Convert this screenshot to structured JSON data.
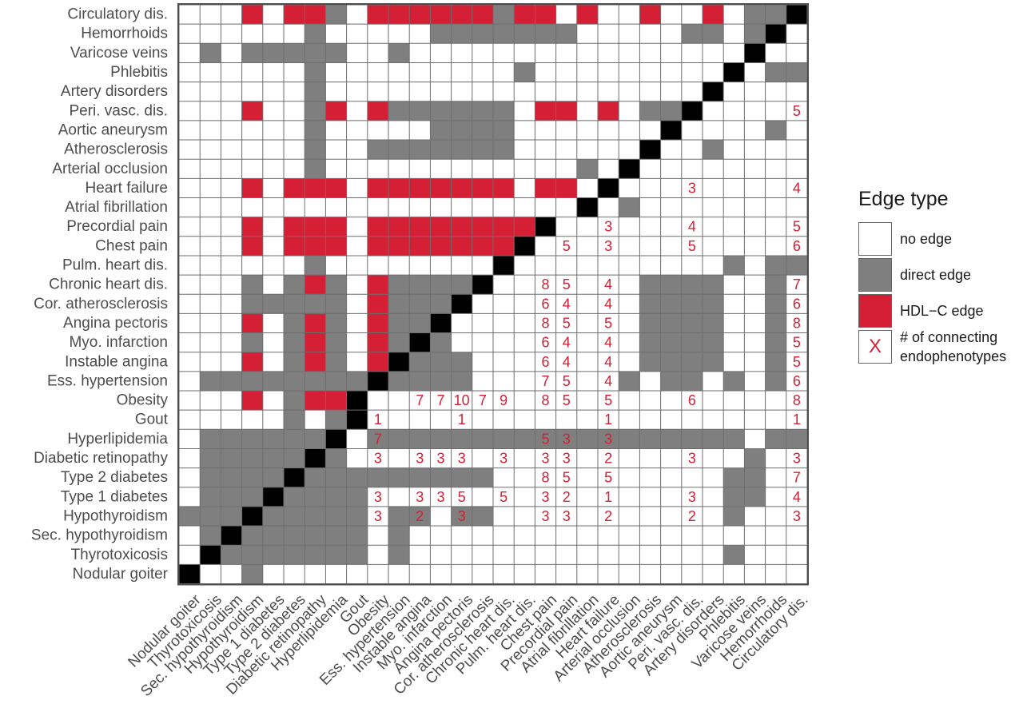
{
  "chart_data": {
    "type": "heatmap",
    "title": "",
    "xlabel": "",
    "ylabel": "",
    "grid": true,
    "legend_position": "right",
    "colors": {
      "none": "#ffffff",
      "direct": "#7f7f7f",
      "hdl": "#d41f34",
      "diag": "#000000",
      "count": "#d41f34",
      "border": "#6e6e6e"
    },
    "x_categories": [
      "Nodular goiter",
      "Thyrotoxicosis",
      "Sec. hypothyroidism",
      "Hypothyroidism",
      "Type 1 diabetes",
      "Type 2 diabetes",
      "Diabetic retinopathy",
      "Hyperlipidemia",
      "Gout",
      "Obesity",
      "Ess. hypertension",
      "Instable angina",
      "Myo. infarction",
      "Angina pectoris",
      "Cor. atherosclerosis",
      "Chronic heart dis.",
      "Pulm. heart dis.",
      "Chest pain",
      "Precordial pain",
      "Atrial fibrillation",
      "Heart failure",
      "Arterial occlusion",
      "Atherosclerosis",
      "Aortic aneurysm",
      "Peri. vasc. dis.",
      "Artery disorders",
      "Phlebitis",
      "Varicose veins",
      "Hemorrhoids",
      "Circulatory dis."
    ],
    "y_categories": [
      "Circulatory dis.",
      "Hemorrhoids",
      "Varicose veins",
      "Phlebitis",
      "Artery disorders",
      "Peri. vasc. dis.",
      "Aortic aneurysm",
      "Atherosclerosis",
      "Arterial occlusion",
      "Heart failure",
      "Atrial fibrillation",
      "Precordial pain",
      "Chest pain",
      "Pulm. heart dis.",
      "Chronic heart dis.",
      "Cor. atherosclerosis",
      "Angina pectoris",
      "Myo. infarction",
      "Instable angina",
      "Ess. hypertension",
      "Obesity",
      "Gout",
      "Hyperlipidemia",
      "Diabetic retinopathy",
      "Type 2 diabetes",
      "Type 1 diabetes",
      "Hypothyroidism",
      "Sec. hypothyroidism",
      "Thyrotoxicosis",
      "Nodular goiter"
    ],
    "cell_codes": "0 none, 1 direct edge, 2 HDL-C edge, 3 diagonal (self); rows follow y_categories, columns follow x_categories",
    "cells": [
      "000202210222222122020020020113",
      "000000100000111111100000110130",
      "010111110010000000000000000300",
      "000000100000000010000000003011",
      "000000100000000000000000030000",
      "000200120211111102202011300000",
      "000000100000111100000003000010",
      "000000100111111100000030010000",
      "000000100000000000010300000000",
      "000202220222222202203000000000",
      "000000000000000000030100000000",
      "000202220222222223000000000000",
      "000202220222222230000000000000",
      "000000100000000300000000001011",
      "000101210211113000000011110010",
      "000111110211130000000011110010",
      "000201210211300000000011110010",
      "000101210213100000000011110010",
      "000201210231110000000011110010",
      "011111111311110000000101101010",
      "000201223000000000000000000000",
      "000001013000000000000000000000",
      "011111130111111111111111111011",
      "011111310000000000000000000100",
      "011113111111111000000000001100",
      "011131111000000000000000001100",
      "111311111011011000000000001000",
      "013111111010000000000000000000",
      "031111111010000000000000001000",
      "300100000000000000000000000000"
    ],
    "counts": [
      {
        "row": "Peri. vasc. dis.",
        "col": "Circulatory dis.",
        "value": "5"
      },
      {
        "row": "Heart failure",
        "col": "Peri. vasc. dis.",
        "value": "3"
      },
      {
        "row": "Heart failure",
        "col": "Circulatory dis.",
        "value": "4"
      },
      {
        "row": "Precordial pain",
        "col": "Heart failure",
        "value": "3"
      },
      {
        "row": "Precordial pain",
        "col": "Peri. vasc. dis.",
        "value": "4"
      },
      {
        "row": "Precordial pain",
        "col": "Circulatory dis.",
        "value": "5"
      },
      {
        "row": "Chest pain",
        "col": "Precordial pain",
        "value": "5"
      },
      {
        "row": "Chest pain",
        "col": "Heart failure",
        "value": "3"
      },
      {
        "row": "Chest pain",
        "col": "Peri. vasc. dis.",
        "value": "5"
      },
      {
        "row": "Chest pain",
        "col": "Circulatory dis.",
        "value": "6"
      },
      {
        "row": "Chronic heart dis.",
        "col": "Chest pain",
        "value": "8"
      },
      {
        "row": "Chronic heart dis.",
        "col": "Precordial pain",
        "value": "5"
      },
      {
        "row": "Chronic heart dis.",
        "col": "Heart failure",
        "value": "4"
      },
      {
        "row": "Chronic heart dis.",
        "col": "Circulatory dis.",
        "value": "7"
      },
      {
        "row": "Cor. atherosclerosis",
        "col": "Chest pain",
        "value": "6"
      },
      {
        "row": "Cor. atherosclerosis",
        "col": "Precordial pain",
        "value": "4"
      },
      {
        "row": "Cor. atherosclerosis",
        "col": "Heart failure",
        "value": "4"
      },
      {
        "row": "Cor. atherosclerosis",
        "col": "Circulatory dis.",
        "value": "6"
      },
      {
        "row": "Angina pectoris",
        "col": "Chest pain",
        "value": "8"
      },
      {
        "row": "Angina pectoris",
        "col": "Precordial pain",
        "value": "5"
      },
      {
        "row": "Angina pectoris",
        "col": "Heart failure",
        "value": "5"
      },
      {
        "row": "Angina pectoris",
        "col": "Circulatory dis.",
        "value": "8"
      },
      {
        "row": "Myo. infarction",
        "col": "Chest pain",
        "value": "6"
      },
      {
        "row": "Myo. infarction",
        "col": "Precordial pain",
        "value": "4"
      },
      {
        "row": "Myo. infarction",
        "col": "Heart failure",
        "value": "4"
      },
      {
        "row": "Myo. infarction",
        "col": "Circulatory dis.",
        "value": "5"
      },
      {
        "row": "Instable angina",
        "col": "Chest pain",
        "value": "6"
      },
      {
        "row": "Instable angina",
        "col": "Precordial pain",
        "value": "4"
      },
      {
        "row": "Instable angina",
        "col": "Heart failure",
        "value": "4"
      },
      {
        "row": "Instable angina",
        "col": "Circulatory dis.",
        "value": "5"
      },
      {
        "row": "Ess. hypertension",
        "col": "Chest pain",
        "value": "7"
      },
      {
        "row": "Ess. hypertension",
        "col": "Precordial pain",
        "value": "5"
      },
      {
        "row": "Ess. hypertension",
        "col": "Heart failure",
        "value": "4"
      },
      {
        "row": "Ess. hypertension",
        "col": "Circulatory dis.",
        "value": "6"
      },
      {
        "row": "Obesity",
        "col": "Instable angina",
        "value": "7"
      },
      {
        "row": "Obesity",
        "col": "Myo. infarction",
        "value": "7"
      },
      {
        "row": "Obesity",
        "col": "Angina pectoris",
        "value": "10"
      },
      {
        "row": "Obesity",
        "col": "Cor. atherosclerosis",
        "value": "7"
      },
      {
        "row": "Obesity",
        "col": "Chronic heart dis.",
        "value": "9"
      },
      {
        "row": "Obesity",
        "col": "Chest pain",
        "value": "8"
      },
      {
        "row": "Obesity",
        "col": "Precordial pain",
        "value": "5"
      },
      {
        "row": "Obesity",
        "col": "Heart failure",
        "value": "5"
      },
      {
        "row": "Obesity",
        "col": "Peri. vasc. dis.",
        "value": "6"
      },
      {
        "row": "Obesity",
        "col": "Circulatory dis.",
        "value": "8"
      },
      {
        "row": "Gout",
        "col": "Obesity",
        "value": "1"
      },
      {
        "row": "Gout",
        "col": "Angina pectoris",
        "value": "1"
      },
      {
        "row": "Gout",
        "col": "Heart failure",
        "value": "1"
      },
      {
        "row": "Gout",
        "col": "Circulatory dis.",
        "value": "1"
      },
      {
        "row": "Hyperlipidemia",
        "col": "Obesity",
        "value": "7"
      },
      {
        "row": "Hyperlipidemia",
        "col": "Chest pain",
        "value": "5"
      },
      {
        "row": "Hyperlipidemia",
        "col": "Precordial pain",
        "value": "3"
      },
      {
        "row": "Hyperlipidemia",
        "col": "Heart failure",
        "value": "3"
      },
      {
        "row": "Diabetic retinopathy",
        "col": "Obesity",
        "value": "3"
      },
      {
        "row": "Diabetic retinopathy",
        "col": "Instable angina",
        "value": "3"
      },
      {
        "row": "Diabetic retinopathy",
        "col": "Myo. infarction",
        "value": "3"
      },
      {
        "row": "Diabetic retinopathy",
        "col": "Angina pectoris",
        "value": "3"
      },
      {
        "row": "Diabetic retinopathy",
        "col": "Chronic heart dis.",
        "value": "3"
      },
      {
        "row": "Diabetic retinopathy",
        "col": "Chest pain",
        "value": "3"
      },
      {
        "row": "Diabetic retinopathy",
        "col": "Precordial pain",
        "value": "3"
      },
      {
        "row": "Diabetic retinopathy",
        "col": "Heart failure",
        "value": "2"
      },
      {
        "row": "Diabetic retinopathy",
        "col": "Peri. vasc. dis.",
        "value": "3"
      },
      {
        "row": "Diabetic retinopathy",
        "col": "Circulatory dis.",
        "value": "3"
      },
      {
        "row": "Type 2 diabetes",
        "col": "Chest pain",
        "value": "8"
      },
      {
        "row": "Type 2 diabetes",
        "col": "Precordial pain",
        "value": "5"
      },
      {
        "row": "Type 2 diabetes",
        "col": "Heart failure",
        "value": "5"
      },
      {
        "row": "Type 2 diabetes",
        "col": "Circulatory dis.",
        "value": "7"
      },
      {
        "row": "Type 1 diabetes",
        "col": "Obesity",
        "value": "3"
      },
      {
        "row": "Type 1 diabetes",
        "col": "Instable angina",
        "value": "3"
      },
      {
        "row": "Type 1 diabetes",
        "col": "Myo. infarction",
        "value": "3"
      },
      {
        "row": "Type 1 diabetes",
        "col": "Angina pectoris",
        "value": "5"
      },
      {
        "row": "Type 1 diabetes",
        "col": "Chronic heart dis.",
        "value": "5"
      },
      {
        "row": "Type 1 diabetes",
        "col": "Chest pain",
        "value": "3"
      },
      {
        "row": "Type 1 diabetes",
        "col": "Precordial pain",
        "value": "2"
      },
      {
        "row": "Type 1 diabetes",
        "col": "Heart failure",
        "value": "1"
      },
      {
        "row": "Type 1 diabetes",
        "col": "Peri. vasc. dis.",
        "value": "3"
      },
      {
        "row": "Type 1 diabetes",
        "col": "Circulatory dis.",
        "value": "4"
      },
      {
        "row": "Hypothyroidism",
        "col": "Obesity",
        "value": "3"
      },
      {
        "row": "Hypothyroidism",
        "col": "Instable angina",
        "value": "2"
      },
      {
        "row": "Hypothyroidism",
        "col": "Angina pectoris",
        "value": "3"
      },
      {
        "row": "Hypothyroidism",
        "col": "Chest pain",
        "value": "3"
      },
      {
        "row": "Hypothyroidism",
        "col": "Precordial pain",
        "value": "3"
      },
      {
        "row": "Hypothyroidism",
        "col": "Heart failure",
        "value": "2"
      },
      {
        "row": "Hypothyroidism",
        "col": "Peri. vasc. dis.",
        "value": "2"
      },
      {
        "row": "Hypothyroidism",
        "col": "Circulatory dis.",
        "value": "3"
      }
    ]
  },
  "legend": {
    "title": "Edge type",
    "items": [
      {
        "label": "no edge",
        "color": "#ffffff"
      },
      {
        "label": "direct edge",
        "color": "#7f7f7f"
      },
      {
        "label": "HDL−C edge",
        "color": "#d41f34"
      }
    ],
    "count_item": {
      "symbol": "X",
      "label": "# of connecting\nendophenotypes"
    }
  }
}
